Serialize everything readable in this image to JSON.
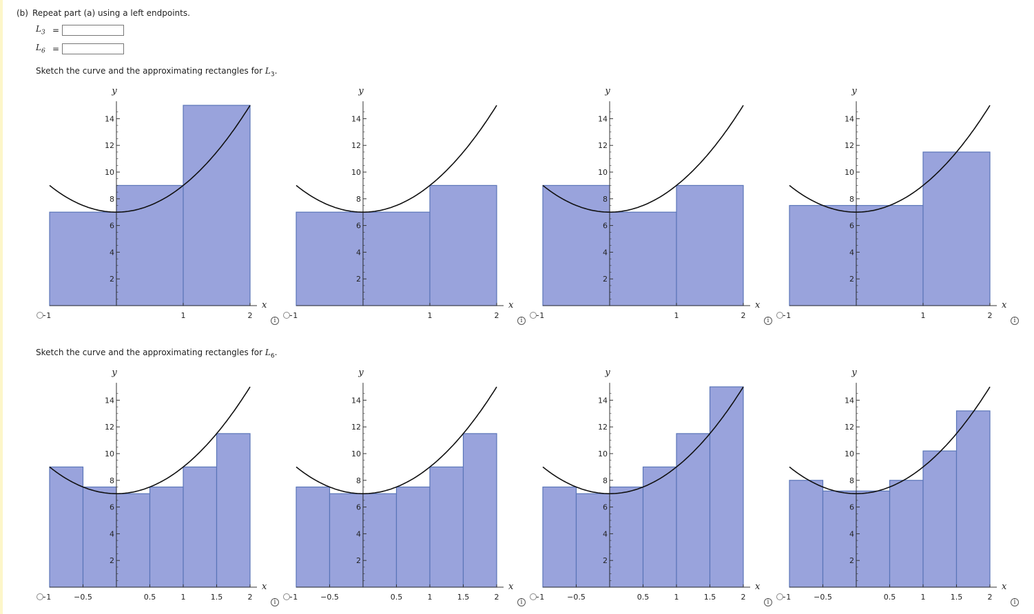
{
  "question": {
    "label": "(b)",
    "text": "Repeat part (a) using a left endpoints.",
    "answers": [
      {
        "symbol": "L",
        "sub": "3",
        "eq": "=",
        "value": ""
      },
      {
        "symbol": "L",
        "sub": "6",
        "eq": "=",
        "value": ""
      }
    ]
  },
  "sketch_L3": {
    "prefix": "Sketch the curve and the approximating rectangles for ",
    "symbol": "L",
    "sub": "3",
    "suffix": "."
  },
  "sketch_L6": {
    "prefix": "Sketch the curve and the approximating rectangles for ",
    "symbol": "L",
    "sub": "6",
    "suffix": "."
  },
  "info_glyph": "i",
  "chart_data": [
    {
      "type": "bar",
      "group": "L3",
      "option": 1,
      "xlabel": "x",
      "ylabel": "y",
      "xlim": [
        -1,
        2
      ],
      "ylim": [
        0,
        15
      ],
      "x_ticks": [
        -1,
        1,
        2
      ],
      "x_tick_labels": [
        "−1",
        "1",
        "2"
      ],
      "y_ticks": [
        2,
        4,
        6,
        8,
        10,
        12,
        14
      ],
      "rect_width": 1,
      "rect_left": [
        -1,
        0,
        1
      ],
      "heights": [
        7,
        9,
        15
      ],
      "curve": "x^2+2x+7? ~ 2x^2+... see script"
    },
    {
      "type": "bar",
      "group": "L3",
      "option": 2,
      "xlabel": "x",
      "ylabel": "y",
      "xlim": [
        -1,
        2
      ],
      "ylim": [
        0,
        15
      ],
      "x_ticks": [
        -1,
        1,
        2
      ],
      "x_tick_labels": [
        "−1",
        "1",
        "2"
      ],
      "y_ticks": [
        2,
        4,
        6,
        8,
        10,
        12,
        14
      ],
      "rect_width": 1,
      "rect_left": [
        -1,
        0,
        1
      ],
      "heights": [
        7,
        7,
        9
      ]
    },
    {
      "type": "bar",
      "group": "L3",
      "option": 3,
      "xlabel": "x",
      "ylabel": "y",
      "xlim": [
        -1,
        2
      ],
      "ylim": [
        0,
        15
      ],
      "x_ticks": [
        -1,
        1,
        2
      ],
      "x_tick_labels": [
        "−1",
        "1",
        "2"
      ],
      "y_ticks": [
        2,
        4,
        6,
        8,
        10,
        12,
        14
      ],
      "rect_width": 1,
      "rect_left": [
        -1,
        0,
        1
      ],
      "heights": [
        9,
        7,
        9
      ]
    },
    {
      "type": "bar",
      "group": "L3",
      "option": 4,
      "xlabel": "x",
      "ylabel": "y",
      "xlim": [
        -1,
        2
      ],
      "ylim": [
        0,
        15
      ],
      "x_ticks": [
        -1,
        1,
        2
      ],
      "x_tick_labels": [
        "−1",
        "1",
        "2"
      ],
      "y_ticks": [
        2,
        4,
        6,
        8,
        10,
        12,
        14
      ],
      "rect_width": 1,
      "rect_left": [
        -1,
        0,
        1
      ],
      "heights": [
        7.5,
        7.5,
        11.5
      ]
    },
    {
      "type": "bar",
      "group": "L6",
      "option": 1,
      "xlabel": "x",
      "ylabel": "y",
      "xlim": [
        -1,
        2
      ],
      "ylim": [
        0,
        15
      ],
      "x_ticks": [
        -1,
        -0.5,
        0.5,
        1,
        1.5,
        2
      ],
      "x_tick_labels": [
        "−1",
        "−0.5",
        "0.5",
        "1",
        "1.5",
        "2"
      ],
      "y_ticks": [
        2,
        4,
        6,
        8,
        10,
        12,
        14
      ],
      "rect_width": 0.5,
      "rect_left": [
        -1,
        -0.5,
        0,
        0.5,
        1,
        1.5
      ],
      "heights": [
        9,
        7.5,
        7,
        7.5,
        9,
        11.5
      ]
    },
    {
      "type": "bar",
      "group": "L6",
      "option": 2,
      "xlabel": "x",
      "ylabel": "y",
      "xlim": [
        -1,
        2
      ],
      "ylim": [
        0,
        15
      ],
      "x_ticks": [
        -1,
        -0.5,
        0.5,
        1,
        1.5,
        2
      ],
      "x_tick_labels": [
        "−1",
        "−0.5",
        "0.5",
        "1",
        "1.5",
        "2"
      ],
      "y_ticks": [
        2,
        4,
        6,
        8,
        10,
        12,
        14
      ],
      "rect_width": 0.5,
      "rect_left": [
        -1,
        -0.5,
        0,
        0.5,
        1,
        1.5
      ],
      "heights": [
        7.5,
        7,
        7,
        7.5,
        9,
        11.5
      ]
    },
    {
      "type": "bar",
      "group": "L6",
      "option": 3,
      "xlabel": "x",
      "ylabel": "y",
      "xlim": [
        -1,
        2
      ],
      "ylim": [
        0,
        15
      ],
      "x_ticks": [
        -1,
        -0.5,
        0.5,
        1,
        1.5,
        2
      ],
      "x_tick_labels": [
        "−1",
        "−0.5",
        "0.5",
        "1",
        "1.5",
        "2"
      ],
      "y_ticks": [
        2,
        4,
        6,
        8,
        10,
        12,
        14
      ],
      "rect_width": 0.5,
      "rect_left": [
        -1,
        -0.5,
        0,
        0.5,
        1,
        1.5
      ],
      "heights": [
        7.5,
        7,
        7.5,
        9,
        11.5,
        15
      ]
    },
    {
      "type": "bar",
      "group": "L6",
      "option": 4,
      "xlabel": "x",
      "ylabel": "y",
      "xlim": [
        -1,
        2
      ],
      "ylim": [
        0,
        15
      ],
      "x_ticks": [
        -1,
        -0.5,
        0.5,
        1,
        1.5,
        2
      ],
      "x_tick_labels": [
        "−1",
        "−0.5",
        "0.5",
        "1",
        "1.5",
        "2"
      ],
      "y_ticks": [
        2,
        4,
        6,
        8,
        10,
        12,
        14
      ],
      "rect_width": 0.5,
      "rect_left": [
        -1,
        -0.5,
        0,
        0.5,
        1,
        1.5
      ],
      "heights": [
        8,
        7.2,
        7.2,
        8,
        10.2,
        13.2
      ]
    }
  ],
  "colors": {
    "rect_fill": "#99a3dc",
    "rect_stroke": "#5a75b8",
    "curve": "#111111",
    "axis": "#333333"
  }
}
